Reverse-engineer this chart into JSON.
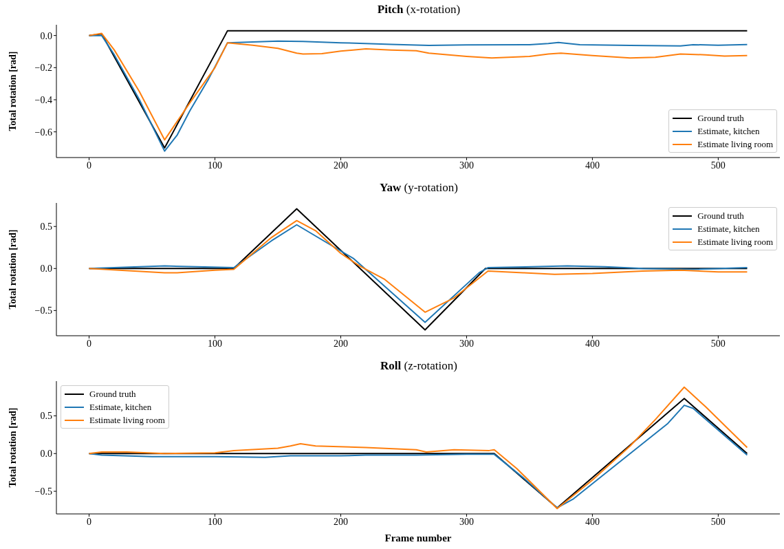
{
  "chart_data": [
    {
      "type": "line",
      "title": "Pitch (x-rotation)",
      "ylabel": "Total rotation [rad]",
      "xlim": [
        -26,
        549
      ],
      "xticks": [
        0,
        100,
        200,
        300,
        400,
        500
      ],
      "ylim": [
        -0.76,
        0.067
      ],
      "yticks": [
        {
          "value": -0.6,
          "label": "−0.6"
        },
        {
          "value": -0.4,
          "label": "−0.4"
        },
        {
          "value": -0.2,
          "label": "−0.2"
        },
        {
          "value": 0,
          "label": "0.0"
        }
      ],
      "legend": "bottom right",
      "series": [
        {
          "name": "Ground truth",
          "color": "#000000",
          "x": [
            0,
            10,
            60,
            108,
            110,
            523
          ],
          "values": [
            0,
            0.01,
            -0.7,
            0.0,
            0.03,
            0.03
          ]
        },
        {
          "name": "Estimate, kitchen",
          "color": "#1f77b4",
          "x": [
            0,
            10,
            20,
            40,
            60,
            70,
            80,
            95,
            110,
            150,
            170,
            200,
            240,
            270,
            300,
            350,
            365,
            373,
            390,
            430,
            470,
            480,
            500,
            523
          ],
          "values": [
            0,
            0,
            -0.12,
            -0.4,
            -0.72,
            -0.62,
            -0.47,
            -0.27,
            -0.045,
            -0.035,
            -0.037,
            -0.045,
            -0.055,
            -0.062,
            -0.058,
            -0.057,
            -0.05,
            -0.043,
            -0.057,
            -0.062,
            -0.065,
            -0.057,
            -0.06,
            -0.056
          ]
        },
        {
          "name": "Estimate living room",
          "color": "#ff7f0e",
          "x": [
            0,
            10,
            20,
            40,
            60,
            80,
            100,
            110,
            130,
            150,
            165,
            170,
            185,
            200,
            220,
            240,
            260,
            270,
            300,
            320,
            350,
            365,
            375,
            400,
            430,
            450,
            470,
            490,
            505,
            523
          ],
          "values": [
            0,
            0.013,
            -0.09,
            -0.35,
            -0.65,
            -0.42,
            -0.2,
            -0.045,
            -0.06,
            -0.08,
            -0.11,
            -0.115,
            -0.113,
            -0.097,
            -0.083,
            -0.09,
            -0.095,
            -0.11,
            -0.13,
            -0.14,
            -0.13,
            -0.115,
            -0.11,
            -0.125,
            -0.14,
            -0.135,
            -0.115,
            -0.12,
            -0.128,
            -0.125
          ]
        }
      ]
    },
    {
      "type": "line",
      "title": "Yaw (y-rotation)",
      "ylabel": "Total rotation [rad]",
      "xlim": [
        -26,
        549
      ],
      "xticks": [
        0,
        100,
        200,
        300,
        400,
        500
      ],
      "ylim": [
        -0.8,
        0.78
      ],
      "yticks": [
        {
          "value": -0.5,
          "label": "−0.5"
        },
        {
          "value": 0,
          "label": "0.0"
        },
        0.5
      ],
      "legend": "top right",
      "series": [
        {
          "name": "Ground truth",
          "color": "#000000",
          "x": [
            0,
            115,
            165,
            267,
            315,
            523
          ],
          "values": [
            0,
            0,
            0.71,
            -0.73,
            0,
            0
          ]
        },
        {
          "name": "Estimate, kitchen",
          "color": "#1f77b4",
          "x": [
            0,
            60,
            115,
            145,
            165,
            210,
            267,
            310,
            317,
            380,
            410,
            440,
            480,
            523
          ],
          "values": [
            0,
            0.03,
            0.01,
            0.33,
            0.52,
            0.12,
            -0.64,
            -0.05,
            0.01,
            0.03,
            0.02,
            0.0,
            -0.01,
            0.01
          ]
        },
        {
          "name": "Estimate living room",
          "color": "#ff7f0e",
          "x": [
            0,
            60,
            70,
            100,
            115,
            145,
            165,
            180,
            200,
            215,
            235,
            267,
            290,
            317,
            345,
            370,
            400,
            440,
            470,
            500,
            523
          ],
          "values": [
            0,
            -0.05,
            -0.05,
            -0.02,
            -0.01,
            0.37,
            0.57,
            0.45,
            0.18,
            0.03,
            -0.13,
            -0.52,
            -0.35,
            -0.03,
            -0.05,
            -0.07,
            -0.06,
            -0.03,
            -0.02,
            -0.04,
            -0.04
          ]
        }
      ]
    },
    {
      "type": "line",
      "title": "Roll (z-rotation)",
      "xlabel": "Frame number",
      "ylabel": "Total rotation [rad]",
      "xlim": [
        -26,
        549
      ],
      "xticks": [
        0,
        100,
        200,
        300,
        400,
        500
      ],
      "ylim": [
        -0.8,
        0.96
      ],
      "yticks": [
        {
          "value": -0.5,
          "label": "−0.5"
        },
        {
          "value": 0,
          "label": "0.0"
        },
        0.5
      ],
      "legend": "top left",
      "series": [
        {
          "name": "Ground truth",
          "color": "#000000",
          "x": [
            0,
            322,
            372,
            473,
            523
          ],
          "values": [
            0,
            0,
            -0.72,
            0.73,
            0
          ]
        },
        {
          "name": "Estimate, kitchen",
          "color": "#1f77b4",
          "x": [
            0,
            10,
            50,
            100,
            140,
            160,
            200,
            220,
            260,
            300,
            322,
            345,
            372,
            385,
            430,
            460,
            473,
            480,
            523
          ],
          "values": [
            0,
            -0.02,
            -0.04,
            -0.04,
            -0.05,
            -0.03,
            -0.03,
            -0.02,
            -0.02,
            -0.01,
            -0.01,
            -0.32,
            -0.72,
            -0.6,
            0.0,
            0.4,
            0.64,
            0.6,
            -0.02
          ]
        },
        {
          "name": "Estimate living room",
          "color": "#ff7f0e",
          "x": [
            0,
            10,
            30,
            60,
            100,
            115,
            150,
            160,
            168,
            180,
            220,
            260,
            268,
            290,
            318,
            322,
            340,
            372,
            400,
            430,
            450,
            473,
            490,
            523
          ],
          "values": [
            0,
            0.02,
            0.02,
            0.0,
            0.01,
            0.04,
            0.07,
            0.1,
            0.13,
            0.1,
            0.08,
            0.05,
            0.02,
            0.05,
            0.04,
            0.05,
            -0.2,
            -0.73,
            -0.35,
            0.1,
            0.45,
            0.88,
            0.62,
            0.08
          ]
        }
      ]
    }
  ]
}
